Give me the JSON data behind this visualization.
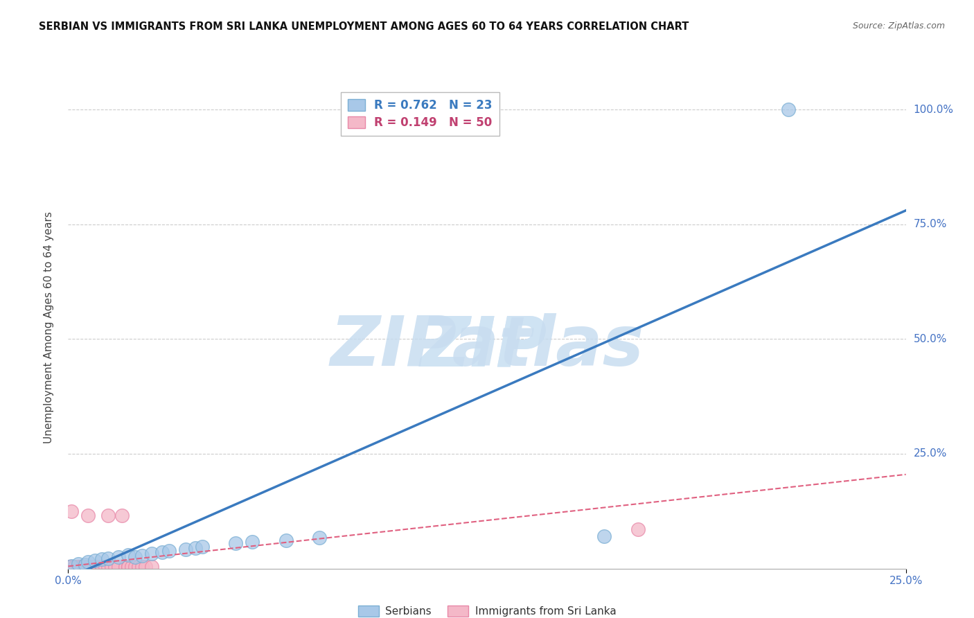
{
  "title": "SERBIAN VS IMMIGRANTS FROM SRI LANKA UNEMPLOYMENT AMONG AGES 60 TO 64 YEARS CORRELATION CHART",
  "source": "Source: ZipAtlas.com",
  "ylabel_label": "Unemployment Among Ages 60 to 64 years",
  "legend_label1": "Serbians",
  "legend_label2": "Immigrants from Sri Lanka",
  "R1": 0.762,
  "N1": 23,
  "R2": 0.149,
  "N2": 50,
  "color_blue": "#a8c8e8",
  "color_blue_edge": "#7bafd4",
  "color_pink": "#f4b8c8",
  "color_pink_edge": "#e888a8",
  "color_blue_line": "#3a7abf",
  "color_pink_line": "#e06080",
  "blue_dots": [
    [
      0.001,
      0.005
    ],
    [
      0.003,
      0.01
    ],
    [
      0.005,
      0.008
    ],
    [
      0.006,
      0.015
    ],
    [
      0.008,
      0.018
    ],
    [
      0.01,
      0.02
    ],
    [
      0.012,
      0.022
    ],
    [
      0.015,
      0.025
    ],
    [
      0.018,
      0.03
    ],
    [
      0.02,
      0.025
    ],
    [
      0.022,
      0.028
    ],
    [
      0.025,
      0.032
    ],
    [
      0.028,
      0.035
    ],
    [
      0.03,
      0.038
    ],
    [
      0.035,
      0.042
    ],
    [
      0.038,
      0.045
    ],
    [
      0.04,
      0.048
    ],
    [
      0.05,
      0.055
    ],
    [
      0.055,
      0.058
    ],
    [
      0.065,
      0.062
    ],
    [
      0.075,
      0.068
    ],
    [
      0.16,
      0.07
    ],
    [
      0.215,
      1.0
    ]
  ],
  "pink_dots": [
    [
      0.0,
      0.004
    ],
    [
      0.001,
      0.004
    ],
    [
      0.001,
      0.004
    ],
    [
      0.001,
      0.004
    ],
    [
      0.001,
      0.125
    ],
    [
      0.002,
      0.004
    ],
    [
      0.002,
      0.004
    ],
    [
      0.002,
      0.004
    ],
    [
      0.002,
      0.004
    ],
    [
      0.003,
      0.004
    ],
    [
      0.003,
      0.004
    ],
    [
      0.003,
      0.004
    ],
    [
      0.003,
      0.004
    ],
    [
      0.004,
      0.004
    ],
    [
      0.004,
      0.004
    ],
    [
      0.004,
      0.004
    ],
    [
      0.004,
      0.004
    ],
    [
      0.005,
      0.004
    ],
    [
      0.005,
      0.004
    ],
    [
      0.005,
      0.004
    ],
    [
      0.005,
      0.004
    ],
    [
      0.006,
      0.004
    ],
    [
      0.006,
      0.004
    ],
    [
      0.006,
      0.115
    ],
    [
      0.007,
      0.004
    ],
    [
      0.007,
      0.004
    ],
    [
      0.008,
      0.004
    ],
    [
      0.008,
      0.004
    ],
    [
      0.009,
      0.004
    ],
    [
      0.009,
      0.004
    ],
    [
      0.01,
      0.004
    ],
    [
      0.01,
      0.004
    ],
    [
      0.01,
      0.004
    ],
    [
      0.011,
      0.004
    ],
    [
      0.012,
      0.004
    ],
    [
      0.012,
      0.115
    ],
    [
      0.013,
      0.004
    ],
    [
      0.014,
      0.004
    ],
    [
      0.015,
      0.004
    ],
    [
      0.016,
      0.115
    ],
    [
      0.017,
      0.004
    ],
    [
      0.018,
      0.004
    ],
    [
      0.018,
      0.004
    ],
    [
      0.019,
      0.004
    ],
    [
      0.02,
      0.004
    ],
    [
      0.021,
      0.004
    ],
    [
      0.022,
      0.004
    ],
    [
      0.023,
      0.004
    ],
    [
      0.17,
      0.085
    ],
    [
      0.025,
      0.004
    ]
  ],
  "blue_line_x": [
    0.0,
    0.25
  ],
  "blue_line_y": [
    -0.02,
    0.78
  ],
  "pink_line_x": [
    0.0,
    0.25
  ],
  "pink_line_y": [
    0.005,
    0.205
  ],
  "watermark_zip": "ZIP",
  "watermark_atlas": "atlas",
  "watermark_color_zip": "#c8ddf0",
  "watermark_color_atlas": "#a0c4e0",
  "background_color": "#ffffff",
  "grid_color": "#cccccc",
  "tick_color": "#4472c4",
  "ytick_vals": [
    0.0,
    0.25,
    0.5,
    0.75,
    1.0
  ],
  "ytick_labels": [
    "",
    "25.0%",
    "50.0%",
    "75.0%",
    "100.0%"
  ],
  "xtick_vals": [
    0.0,
    0.25
  ],
  "xtick_labels": [
    "0.0%",
    "25.0%"
  ]
}
